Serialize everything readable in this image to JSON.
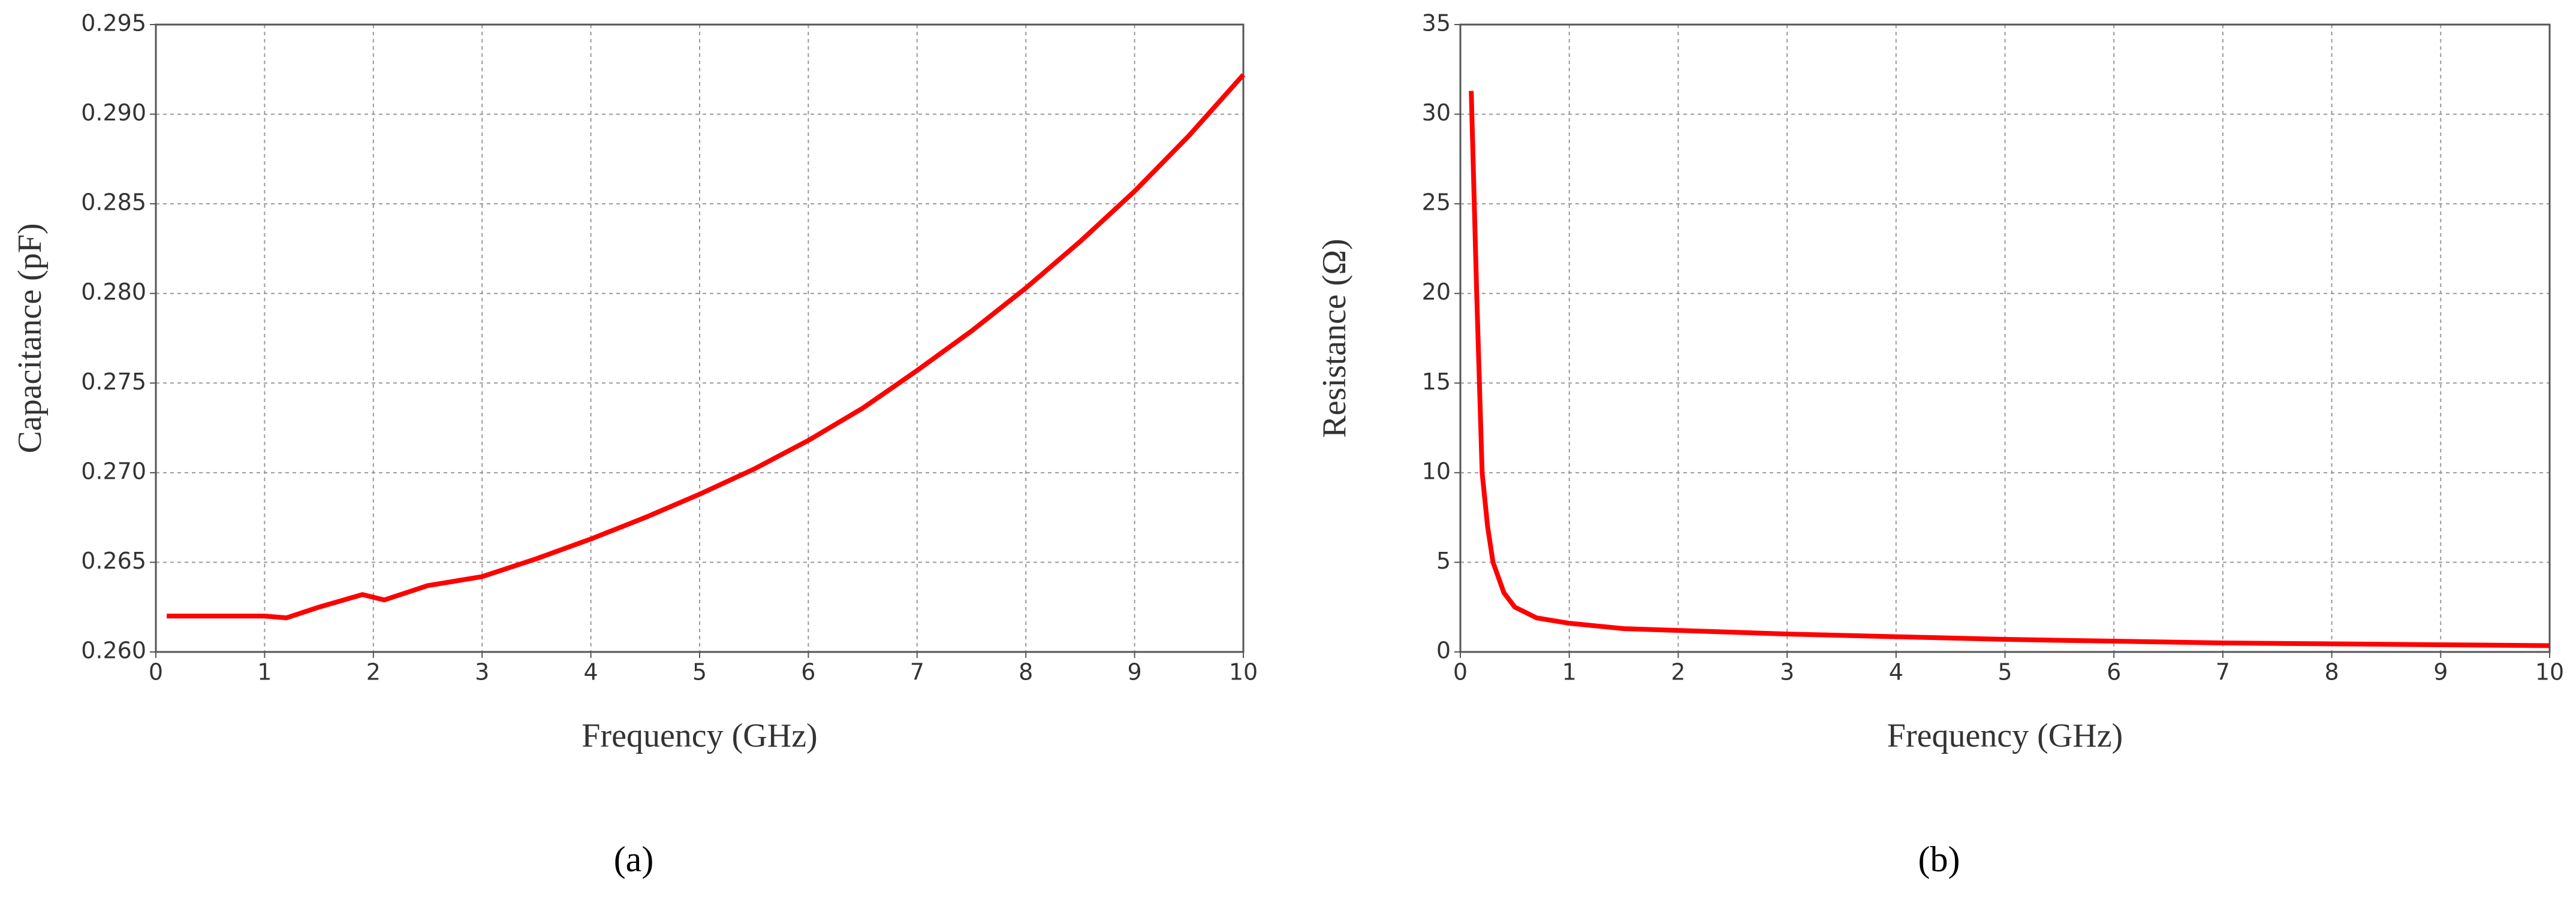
{
  "chart_data": [
    {
      "type": "line",
      "caption": "(a)",
      "xlabel": "Frequency (GHz)",
      "ylabel": "Capacitance (pF)",
      "color": "#ff0000",
      "grid": true,
      "x": [
        0.1,
        1.0,
        1.2,
        1.5,
        1.9,
        2.1,
        2.5,
        3,
        3.5,
        4,
        4.5,
        5,
        5.5,
        6,
        6.5,
        7,
        7.5,
        8,
        8.5,
        9,
        9.5,
        10
      ],
      "values": [
        0.262,
        0.262,
        0.2619,
        0.2625,
        0.2632,
        0.2629,
        0.2637,
        0.2642,
        0.2652,
        0.2663,
        0.2675,
        0.2688,
        0.2702,
        0.2718,
        0.2736,
        0.2757,
        0.2779,
        0.2803,
        0.2829,
        0.2857,
        0.2888,
        0.2922
      ],
      "xlim": [
        0,
        10
      ],
      "xticks": [
        0,
        1,
        2,
        3,
        4,
        5,
        6,
        7,
        8,
        9,
        10
      ],
      "ylim": [
        0.26,
        0.295
      ],
      "yticks": [
        {
          "value": 0.26,
          "label": "0.260"
        },
        0.265,
        {
          "value": 0.27,
          "label": "0.270"
        },
        0.275,
        {
          "value": 0.28,
          "label": "0.280"
        },
        0.285,
        {
          "value": 0.29,
          "label": "0.290"
        },
        0.295
      ]
    },
    {
      "type": "line",
      "caption": "(b)",
      "xlabel": "Frequency (GHz)",
      "ylabel": "Resistance (Ω)",
      "color": "#ff0000",
      "grid": true,
      "x": [
        0.1,
        0.15,
        0.2,
        0.25,
        0.3,
        0.4,
        0.5,
        0.7,
        1,
        1.5,
        2,
        3,
        4,
        5,
        6,
        7,
        8,
        9,
        10
      ],
      "values": [
        31.3,
        20,
        10,
        7,
        5,
        3.3,
        2.5,
        1.9,
        1.6,
        1.3,
        1.2,
        1.0,
        0.85,
        0.7,
        0.6,
        0.5,
        0.45,
        0.4,
        0.35
      ],
      "xlim": [
        0,
        10
      ],
      "xticks": [
        0,
        1,
        2,
        3,
        4,
        5,
        6,
        7,
        8,
        9,
        10
      ],
      "ylim": [
        0,
        35
      ],
      "yticks": [
        0,
        5,
        10,
        15,
        20,
        25,
        30,
        35
      ]
    }
  ]
}
